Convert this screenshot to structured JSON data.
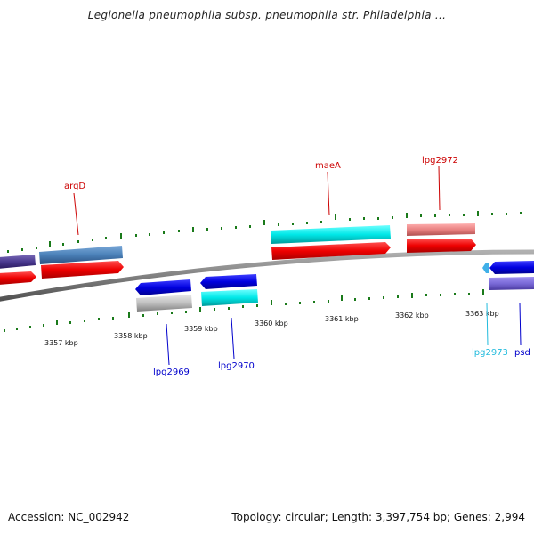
{
  "header": {
    "title": "Legionella pneumophila subsp. pneumophila str. Philadelphia ..."
  },
  "footer": {
    "accession": "Accession: NC_002942",
    "summary": "Topology: circular; Length: 3,397,754 bp; Genes: 2,994"
  },
  "axis": {
    "tick_labels": [
      "3357 kbp",
      "3358 kbp",
      "3359 kbp",
      "3360 kbp",
      "3361 kbp",
      "3362 kbp",
      "3363 kbp"
    ]
  },
  "genes": {
    "labels": [
      "argD",
      "maeA",
      "lpg2972",
      "lpg2969",
      "lpg2970",
      "lpg2973",
      "psd"
    ]
  },
  "colors": {
    "backbone": "#808080",
    "forward_cds": "#e00000",
    "reverse_cds": "#0000e0",
    "cyan_feature": "#00e0e0",
    "steelblue_feature": "#4a80b8",
    "pink_feature": "#e88080",
    "gray_feature": "#b8b8b8",
    "purple_feature": "#7a6ad8",
    "gc_skew": "#1a7a1a",
    "red_label": "#cc0000",
    "blue_label": "#0000cc",
    "cyan_label": "#22bbdd"
  }
}
